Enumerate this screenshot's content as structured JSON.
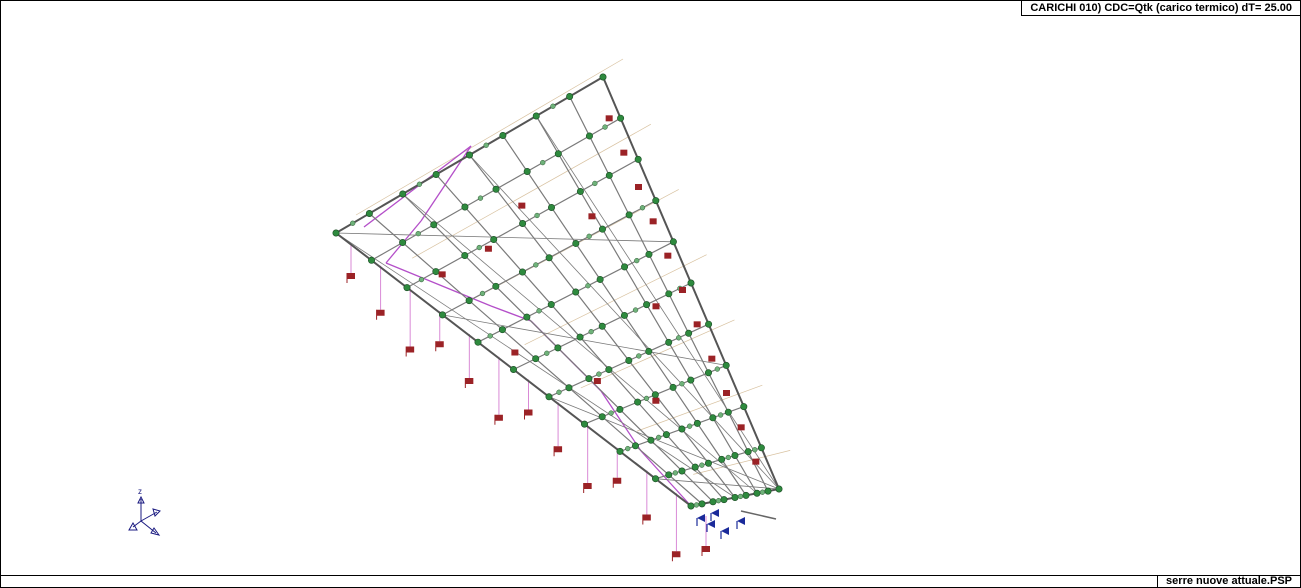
{
  "header": {
    "title": "CARICHI   010) CDC=Qtk (carico termico) dT= 25.00"
  },
  "footer": {
    "filename": "serre nuove attuale.PSP"
  },
  "axes_triad": {
    "z_label": "z"
  },
  "colors": {
    "frame": "#000000",
    "members": "#7a7a7a",
    "nodes": "#2e8a3e",
    "load_markers": "#9b2226",
    "constraints": "#1a2a9a",
    "braces": "#b44fc9",
    "hatch": "#c8a878"
  }
}
